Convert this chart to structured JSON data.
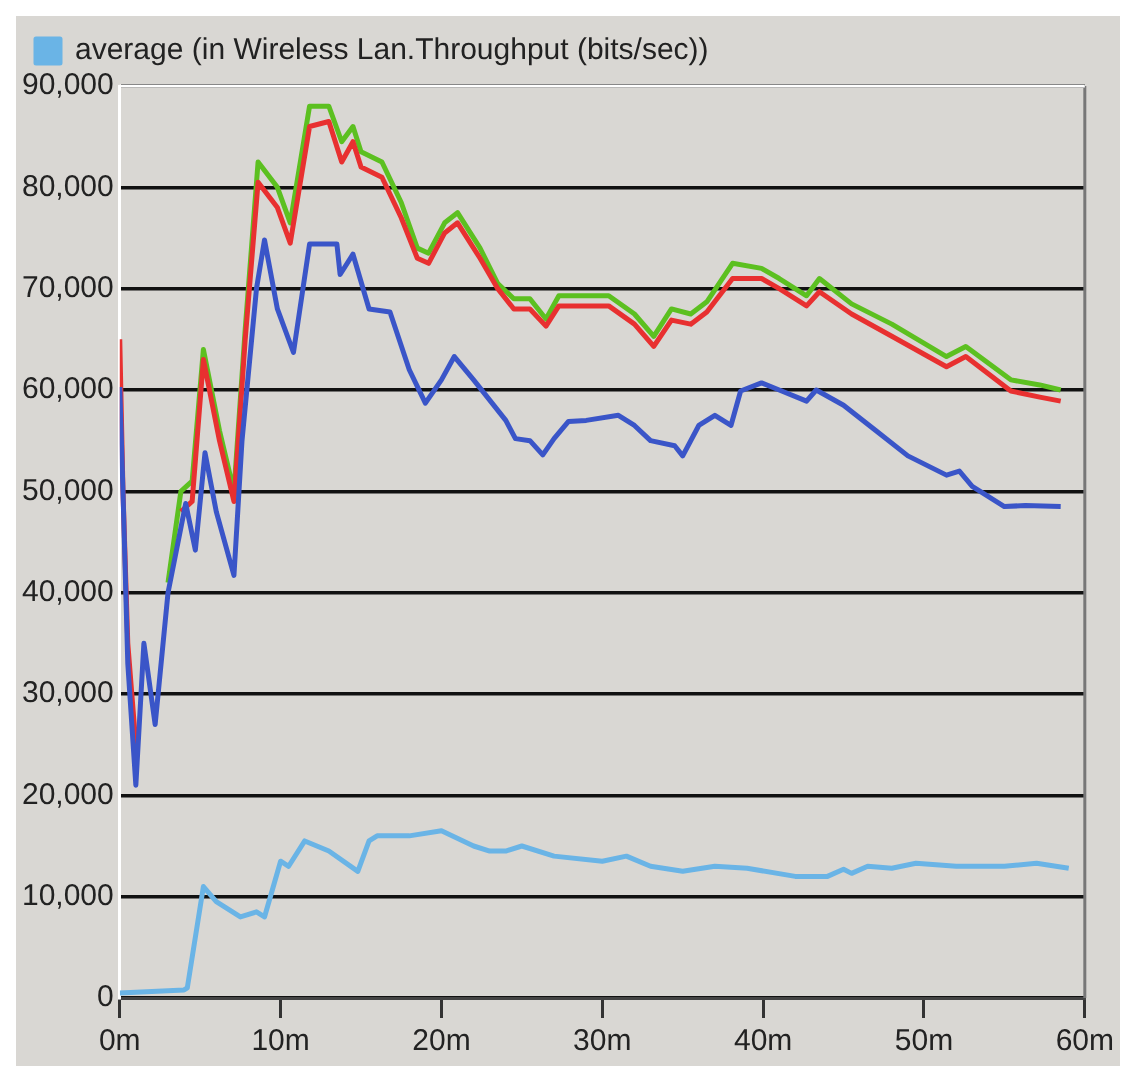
{
  "chart_data": {
    "type": "line",
    "legend": "top",
    "grid": "y",
    "marker": "none",
    "line_style": "solid",
    "xlim": [
      0,
      60
    ],
    "xticks": [
      {
        "value": 0,
        "label": "0m"
      },
      {
        "value": 10,
        "label": "10m"
      },
      {
        "value": 20,
        "label": "20m"
      },
      {
        "value": 30,
        "label": "30m"
      },
      {
        "value": 40,
        "label": "40m"
      },
      {
        "value": 50,
        "label": "50m"
      },
      {
        "value": 60,
        "label": "60m"
      }
    ],
    "ylim": [
      0,
      90000
    ],
    "yticks": [
      {
        "value": 0,
        "label": "0"
      },
      {
        "value": 10000,
        "label": "10,000"
      },
      {
        "value": 20000,
        "label": "20,000"
      },
      {
        "value": 30000,
        "label": "30,000"
      },
      {
        "value": 40000,
        "label": "40,000"
      },
      {
        "value": 50000,
        "label": "50,000"
      },
      {
        "value": 60000,
        "label": "60,000"
      },
      {
        "value": 70000,
        "label": "70,000"
      },
      {
        "value": 80000,
        "label": "80,000"
      },
      {
        "value": 90000,
        "label": "90,000"
      }
    ],
    "series": [
      {
        "name": "average (in Wireless Lan.Throughput (bits/sec))",
        "color": "#6ab4e6",
        "x": [
          0,
          4,
          4.2,
          5.2,
          6,
          7.5,
          8.5,
          9,
          10,
          10.5,
          11.5,
          13,
          14.8,
          15.5,
          16,
          18,
          20,
          22,
          23,
          24,
          25,
          27,
          30,
          31.5,
          33,
          35,
          37,
          39,
          42,
          44,
          45,
          45.5,
          46.5,
          48,
          49.5,
          52,
          55,
          57,
          59
        ],
        "values": [
          500,
          800,
          1000,
          11000,
          9500,
          8000,
          8500,
          8000,
          13500,
          13000,
          15500,
          14500,
          12500,
          15500,
          16000,
          16000,
          16500,
          15000,
          14500,
          14500,
          15000,
          14000,
          13500,
          14000,
          13000,
          12500,
          13000,
          12800,
          12000,
          12000,
          12700,
          12300,
          13000,
          12800,
          13300,
          13000,
          13000,
          13300,
          12800
        ]
      },
      {
        "color": "#3a55c8",
        "x": [
          0,
          0.2,
          0.5,
          1,
          1.5,
          2.2,
          3,
          4.1,
          4.7,
          5.3,
          6,
          7.1,
          7.6,
          8.5,
          9,
          9.8,
          10.8,
          11.8,
          13.5,
          13.7,
          14.5,
          15.5,
          16.8,
          18,
          19,
          20,
          20.8,
          22,
          24,
          24.6,
          25.5,
          26.3,
          27,
          27.9,
          29,
          31,
          32,
          33,
          34.5,
          35,
          36,
          37,
          38,
          38.6,
          39.9,
          41,
          42.7,
          43.3,
          45,
          47,
          49,
          51.4,
          52.2,
          53,
          55,
          56.3,
          58.5
        ],
        "values": [
          60300,
          50000,
          33000,
          21000,
          35000,
          27000,
          40000,
          48800,
          44200,
          53800,
          48000,
          41700,
          55000,
          70000,
          74800,
          68000,
          63700,
          74400,
          74400,
          71400,
          73400,
          68000,
          67700,
          62000,
          58700,
          61000,
          63300,
          61000,
          57000,
          55200,
          55000,
          53600,
          55200,
          56900,
          57000,
          57500,
          56500,
          55000,
          54500,
          53500,
          56500,
          57500,
          56500,
          59900,
          60700,
          60000,
          58900,
          60000,
          58500,
          56000,
          53500,
          51600,
          52000,
          50500,
          48500,
          48600,
          48500
        ]
      },
      {
        "color": "#e83030",
        "x": [
          0,
          0.2,
          0.5,
          1,
          1.5,
          2.2,
          3,
          3.8,
          4.5,
          5.2,
          6.2,
          7.1,
          7.8,
          8.6,
          9.8,
          10.6,
          11.8,
          13,
          13.8,
          14.5,
          15,
          16.3,
          17.5,
          18.5,
          19.2,
          20.2,
          21,
          22.4,
          23.5,
          24.5,
          25.5,
          26.5,
          27.3,
          28.5,
          30.4,
          32,
          33.2,
          34.3,
          35.5,
          36.5,
          38.1,
          39.9,
          41,
          42.7,
          43.5,
          45.5,
          48,
          51.4,
          52.6,
          55.4,
          57.2,
          58.5
        ],
        "values": [
          65000,
          50000,
          35000,
          25000,
          null,
          null,
          null,
          48000,
          49000,
          63000,
          55000,
          49000,
          65000,
          80500,
          78000,
          74500,
          86000,
          86500,
          82500,
          84500,
          82000,
          81000,
          77000,
          73000,
          72500,
          75500,
          76500,
          73000,
          70000,
          68000,
          68000,
          66300,
          68300,
          68300,
          68300,
          66500,
          64300,
          66900,
          66500,
          67700,
          71000,
          71000,
          70000,
          68300,
          69700,
          67500,
          65300,
          62300,
          63300,
          59900,
          59300,
          58900
        ]
      },
      {
        "color": "#5cc020",
        "x": [
          3,
          3.8,
          4.5,
          5.2,
          6.2,
          7.1,
          7.8,
          8.6,
          9.8,
          10.6,
          11.8,
          13,
          13.8,
          14.5,
          15,
          16.3,
          17.5,
          18.5,
          19.2,
          20.2,
          21,
          22.4,
          23.5,
          24.5,
          25.5,
          26.5,
          27.3,
          28.5,
          30.4,
          32,
          33.2,
          34.3,
          35.5,
          36.5,
          38.1,
          39.9,
          41,
          42.7,
          43.5,
          45.5,
          48,
          51.4,
          52.6,
          55.4,
          57.2,
          58.5
        ],
        "values": [
          41000,
          50000,
          51000,
          64000,
          56000,
          50000,
          66000,
          82500,
          80000,
          76500,
          88000,
          88000,
          84500,
          86000,
          83500,
          82500,
          78500,
          74000,
          73500,
          76500,
          77500,
          74000,
          70500,
          69000,
          69000,
          67000,
          69300,
          69300,
          69300,
          67500,
          65300,
          68000,
          67500,
          68700,
          72500,
          72000,
          71000,
          69300,
          71000,
          68500,
          66500,
          63300,
          64300,
          61000,
          60500,
          60000
        ]
      }
    ]
  }
}
